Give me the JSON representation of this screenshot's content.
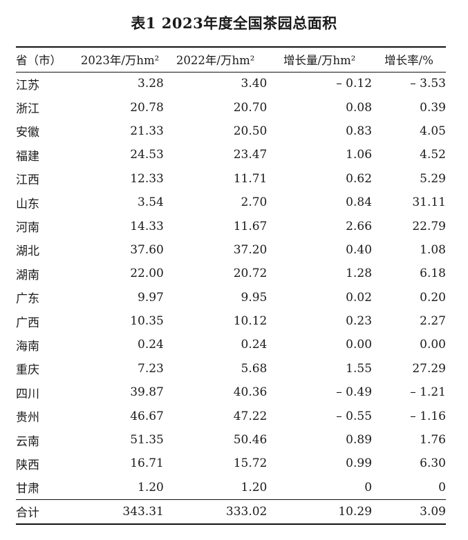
{
  "title": "表1  2023年度全国茶园总面积",
  "headers": {
    "province": "省（市）",
    "y2023": "2023年/万hm²",
    "y2022": "2022年/万hm²",
    "growth": "增长量/万hm²",
    "rate": "增长率/%"
  },
  "rows": [
    {
      "province": "江苏",
      "y2023": "3.28",
      "y2022": "3.40",
      "growth": "– 0.12",
      "rate": "– 3.53"
    },
    {
      "province": "浙江",
      "y2023": "20.78",
      "y2022": "20.70",
      "growth": "0.08",
      "rate": "0.39"
    },
    {
      "province": "安徽",
      "y2023": "21.33",
      "y2022": "20.50",
      "growth": "0.83",
      "rate": "4.05"
    },
    {
      "province": "福建",
      "y2023": "24.53",
      "y2022": "23.47",
      "growth": "1.06",
      "rate": "4.52"
    },
    {
      "province": "江西",
      "y2023": "12.33",
      "y2022": "11.71",
      "growth": "0.62",
      "rate": "5.29"
    },
    {
      "province": "山东",
      "y2023": "3.54",
      "y2022": "2.70",
      "growth": "0.84",
      "rate": "31.11"
    },
    {
      "province": "河南",
      "y2023": "14.33",
      "y2022": "11.67",
      "growth": "2.66",
      "rate": "22.79"
    },
    {
      "province": "湖北",
      "y2023": "37.60",
      "y2022": "37.20",
      "growth": "0.40",
      "rate": "1.08"
    },
    {
      "province": "湖南",
      "y2023": "22.00",
      "y2022": "20.72",
      "growth": "1.28",
      "rate": "6.18"
    },
    {
      "province": "广东",
      "y2023": "9.97",
      "y2022": "9.95",
      "growth": "0.02",
      "rate": "0.20"
    },
    {
      "province": "广西",
      "y2023": "10.35",
      "y2022": "10.12",
      "growth": "0.23",
      "rate": "2.27"
    },
    {
      "province": "海南",
      "y2023": "0.24",
      "y2022": "0.24",
      "growth": "0.00",
      "rate": "0.00"
    },
    {
      "province": "重庆",
      "y2023": "7.23",
      "y2022": "5.68",
      "growth": "1.55",
      "rate": "27.29"
    },
    {
      "province": "四川",
      "y2023": "39.87",
      "y2022": "40.36",
      "growth": "– 0.49",
      "rate": "– 1.21"
    },
    {
      "province": "贵州",
      "y2023": "46.67",
      "y2022": "47.22",
      "growth": "– 0.55",
      "rate": "– 1.16"
    },
    {
      "province": "云南",
      "y2023": "51.35",
      "y2022": "50.46",
      "growth": "0.89",
      "rate": "1.76"
    },
    {
      "province": "陕西",
      "y2023": "16.71",
      "y2022": "15.72",
      "growth": "0.99",
      "rate": "6.30"
    },
    {
      "province": "甘肃",
      "y2023": "1.20",
      "y2022": "1.20",
      "growth": "0",
      "rate": "0"
    }
  ],
  "total": {
    "province": "合计",
    "y2023": "343.31",
    "y2022": "333.02",
    "growth": "10.29",
    "rate": "3.09"
  }
}
